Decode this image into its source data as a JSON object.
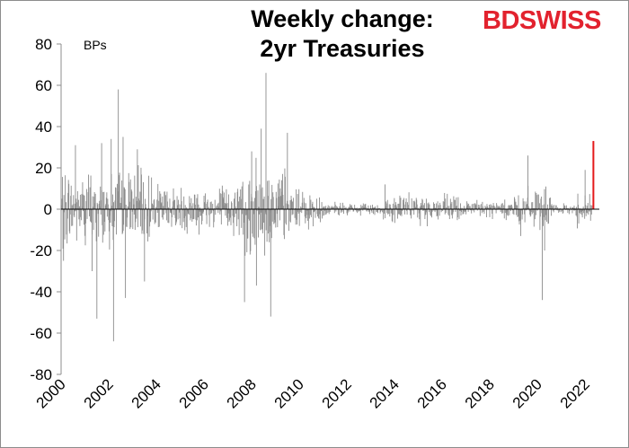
{
  "chart_data": {
    "type": "bar",
    "title_line1": "Weekly change:",
    "title_line2": "2yr Treasuries",
    "unit_label": "BPs",
    "xlabel": "",
    "ylabel": "",
    "ylim": [
      -80,
      80
    ],
    "y_ticks": [
      80,
      60,
      40,
      20,
      0,
      -20,
      -40,
      -60,
      -80
    ],
    "x_ticks": [
      "2000",
      "2002",
      "2004",
      "2006",
      "2008",
      "2010",
      "2012",
      "2014",
      "2016",
      "2018",
      "2020",
      "2022"
    ],
    "xlim": [
      2000,
      2022.6
    ],
    "bar_color": "#8c8c8c",
    "highlight_color": "#e41a1c",
    "notable_values": [
      {
        "x": 2000.1,
        "y": -25
      },
      {
        "x": 2000.6,
        "y": 31
      },
      {
        "x": 2001.3,
        "y": -30
      },
      {
        "x": 2001.5,
        "y": -53
      },
      {
        "x": 2001.7,
        "y": 32
      },
      {
        "x": 2002.1,
        "y": 34
      },
      {
        "x": 2002.2,
        "y": -64
      },
      {
        "x": 2002.4,
        "y": 58
      },
      {
        "x": 2002.6,
        "y": 35
      },
      {
        "x": 2002.7,
        "y": -43
      },
      {
        "x": 2003.2,
        "y": 29
      },
      {
        "x": 2003.5,
        "y": -35
      },
      {
        "x": 2007.7,
        "y": -45
      },
      {
        "x": 2008.0,
        "y": 28
      },
      {
        "x": 2008.2,
        "y": -37
      },
      {
        "x": 2008.4,
        "y": 39
      },
      {
        "x": 2008.6,
        "y": 66
      },
      {
        "x": 2008.8,
        "y": -52
      },
      {
        "x": 2009.5,
        "y": 37
      },
      {
        "x": 2013.6,
        "y": 12
      },
      {
        "x": 2019.3,
        "y": -13
      },
      {
        "x": 2019.6,
        "y": 26
      },
      {
        "x": 2020.2,
        "y": -44
      },
      {
        "x": 2020.3,
        "y": -20
      },
      {
        "x": 2022.0,
        "y": 19
      },
      {
        "x": 2022.35,
        "y": 33
      }
    ],
    "highlighted": {
      "x": 2022.35,
      "y": 33
    }
  },
  "brand": {
    "part1": "BD",
    "part2": "SWISS"
  }
}
